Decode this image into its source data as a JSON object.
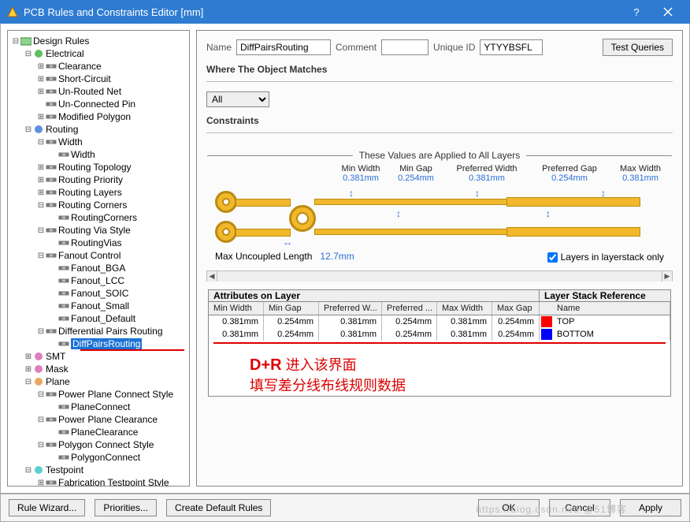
{
  "titlebar": {
    "title": "PCB Rules and Constraints Editor [mm]"
  },
  "tree": [
    {
      "d": 0,
      "t": "-",
      "i": "folder",
      "l": "Design Rules"
    },
    {
      "d": 1,
      "t": "-",
      "i": "cat-green",
      "l": "Electrical"
    },
    {
      "d": 2,
      "t": "+",
      "i": "rule",
      "l": "Clearance"
    },
    {
      "d": 2,
      "t": "+",
      "i": "rule",
      "l": "Short-Circuit"
    },
    {
      "d": 2,
      "t": "+",
      "i": "rule",
      "l": "Un-Routed Net"
    },
    {
      "d": 2,
      "t": "",
      "i": "rule",
      "l": "Un-Connected Pin"
    },
    {
      "d": 2,
      "t": "+",
      "i": "rule",
      "l": "Modified Polygon"
    },
    {
      "d": 1,
      "t": "-",
      "i": "cat-blue",
      "l": "Routing"
    },
    {
      "d": 2,
      "t": "-",
      "i": "rule",
      "l": "Width"
    },
    {
      "d": 3,
      "t": "",
      "i": "rule",
      "l": "Width"
    },
    {
      "d": 2,
      "t": "+",
      "i": "rule",
      "l": "Routing Topology"
    },
    {
      "d": 2,
      "t": "+",
      "i": "rule",
      "l": "Routing Priority"
    },
    {
      "d": 2,
      "t": "+",
      "i": "rule",
      "l": "Routing Layers"
    },
    {
      "d": 2,
      "t": "-",
      "i": "rule",
      "l": "Routing Corners"
    },
    {
      "d": 3,
      "t": "",
      "i": "rule",
      "l": "RoutingCorners"
    },
    {
      "d": 2,
      "t": "-",
      "i": "rule",
      "l": "Routing Via Style"
    },
    {
      "d": 3,
      "t": "",
      "i": "rule",
      "l": "RoutingVias"
    },
    {
      "d": 2,
      "t": "-",
      "i": "rule",
      "l": "Fanout Control"
    },
    {
      "d": 3,
      "t": "",
      "i": "rule",
      "l": "Fanout_BGA"
    },
    {
      "d": 3,
      "t": "",
      "i": "rule",
      "l": "Fanout_LCC"
    },
    {
      "d": 3,
      "t": "",
      "i": "rule",
      "l": "Fanout_SOIC"
    },
    {
      "d": 3,
      "t": "",
      "i": "rule",
      "l": "Fanout_Small"
    },
    {
      "d": 3,
      "t": "",
      "i": "rule",
      "l": "Fanout_Default"
    },
    {
      "d": 2,
      "t": "-",
      "i": "rule",
      "l": "Differential Pairs Routing"
    },
    {
      "d": 3,
      "t": "",
      "i": "rule",
      "l": "DiffPairsRouting",
      "sel": true,
      "ru": true
    },
    {
      "d": 1,
      "t": "+",
      "i": "cat-pink",
      "l": "SMT"
    },
    {
      "d": 1,
      "t": "+",
      "i": "cat-pink",
      "l": "Mask"
    },
    {
      "d": 1,
      "t": "-",
      "i": "cat-orange",
      "l": "Plane"
    },
    {
      "d": 2,
      "t": "-",
      "i": "rule",
      "l": "Power Plane Connect Style"
    },
    {
      "d": 3,
      "t": "",
      "i": "rule",
      "l": "PlaneConnect"
    },
    {
      "d": 2,
      "t": "-",
      "i": "rule",
      "l": "Power Plane Clearance"
    },
    {
      "d": 3,
      "t": "",
      "i": "rule",
      "l": "PlaneClearance"
    },
    {
      "d": 2,
      "t": "-",
      "i": "rule",
      "l": "Polygon Connect Style"
    },
    {
      "d": 3,
      "t": "",
      "i": "rule",
      "l": "PolygonConnect"
    },
    {
      "d": 1,
      "t": "-",
      "i": "cat-cyan",
      "l": "Testpoint"
    },
    {
      "d": 2,
      "t": "+",
      "i": "rule",
      "l": "Fabrication Testpoint Style"
    }
  ],
  "form": {
    "name_label": "Name",
    "name_value": "DiffPairsRouting",
    "comment_label": "Comment",
    "comment_value": "",
    "uid_label": "Unique ID",
    "uid_value": "YTYYBSFL",
    "test_queries": "Test Queries"
  },
  "where": {
    "title": "Where The Object Matches",
    "value": "All"
  },
  "constraints": {
    "title": "Constraints",
    "applied_label": "These Values are Applied to All Layers",
    "labels": [
      "Min Width",
      "Min Gap",
      "Preferred Width",
      "Preferred Gap",
      "Max Width"
    ],
    "values": [
      "0.381mm",
      "0.254mm",
      "0.381mm",
      "0.254mm",
      "0.381mm"
    ],
    "max_uncoupled_label": "Max Uncoupled Length",
    "max_uncoupled_value": "12.7mm",
    "layers_only_label": "Layers in layerstack only",
    "layers_only_checked": true,
    "diagram_colors": {
      "trace": "#f0b82a",
      "trace_border": "#bb8a12",
      "arrow": "#2a6fd6"
    }
  },
  "table": {
    "group1": "Attributes on Layer",
    "group2": "Layer Stack Reference",
    "headers": [
      "Min Width",
      "Min Gap",
      "Preferred W...",
      "Preferred ...",
      "Max Width",
      "Max Gap",
      "",
      "Name"
    ],
    "rows": [
      {
        "cells": [
          "0.381mm",
          "0.254mm",
          "0.381mm",
          "0.254mm",
          "0.381mm",
          "0.254mm"
        ],
        "color": "#ff0000",
        "name": "TOP"
      },
      {
        "cells": [
          "0.381mm",
          "0.254mm",
          "0.381mm",
          "0.254mm",
          "0.381mm",
          "0.254mm"
        ],
        "color": "#0000ff",
        "name": "BOTTOM"
      }
    ]
  },
  "annotation": {
    "dr": "D+R",
    "line1": "  进入该界面",
    "line2": "填写差分线布线规则数据"
  },
  "footer": {
    "rule_wizard": "Rule Wizard...",
    "priorities": "Priorities...",
    "create_default": "Create Default Rules",
    "ok": "OK",
    "cancel": "Cancel",
    "apply": "Apply"
  },
  "watermark": "https://blog.csdn.net/ @51博客"
}
